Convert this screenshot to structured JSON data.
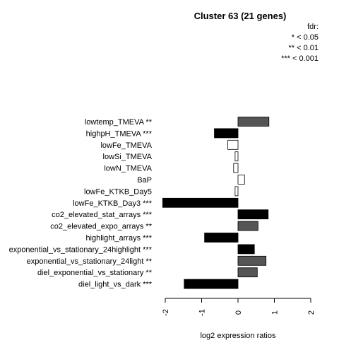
{
  "chart_data": {
    "type": "bar",
    "orientation": "horizontal",
    "title": "Cluster 63 (21 genes)",
    "xlabel": "log2 expression ratios",
    "ylabel": "",
    "xlim": [
      -2,
      2
    ],
    "x_ticks": [
      "-2",
      "-1",
      "0",
      "1",
      "2"
    ],
    "legend": {
      "title": "fdr:",
      "entries": [
        "* < 0.05",
        "** < 0.01",
        "*** < 0.001"
      ],
      "placement": "top-right"
    },
    "categories": [
      "lowtemp_TMEVA **",
      "highpH_TMEVA ***",
      "lowFe_TMEVA",
      "lowSi_TMEVA",
      "lowN_TMEVA",
      "BaP",
      "lowFe_KTKB_Day5",
      "lowFe_KTKB_Day3 ***",
      "co2_elevated_stat_arrays ***",
      "co2_elevated_expo_arrays **",
      "highlight_arrays ***",
      "exponential_vs_stationary_24highlight ***",
      "exponential_vs_stationary_24light **",
      "diel_exponential_vs_stationary **",
      "diel_light_vs_dark ***"
    ],
    "values": [
      0.85,
      -0.65,
      -0.28,
      -0.08,
      -0.12,
      0.18,
      -0.08,
      -2.07,
      0.83,
      0.55,
      -0.92,
      0.45,
      0.77,
      0.53,
      -1.48
    ],
    "significance": [
      "**",
      "***",
      "",
      "",
      "",
      "",
      "",
      "***",
      "***",
      "**",
      "***",
      "***",
      "**",
      "**",
      "***"
    ],
    "colors": {
      "***": "#000000",
      "**": "#555555",
      "*": "#aaaaaa",
      "": "#ffffff"
    },
    "grid": false
  }
}
